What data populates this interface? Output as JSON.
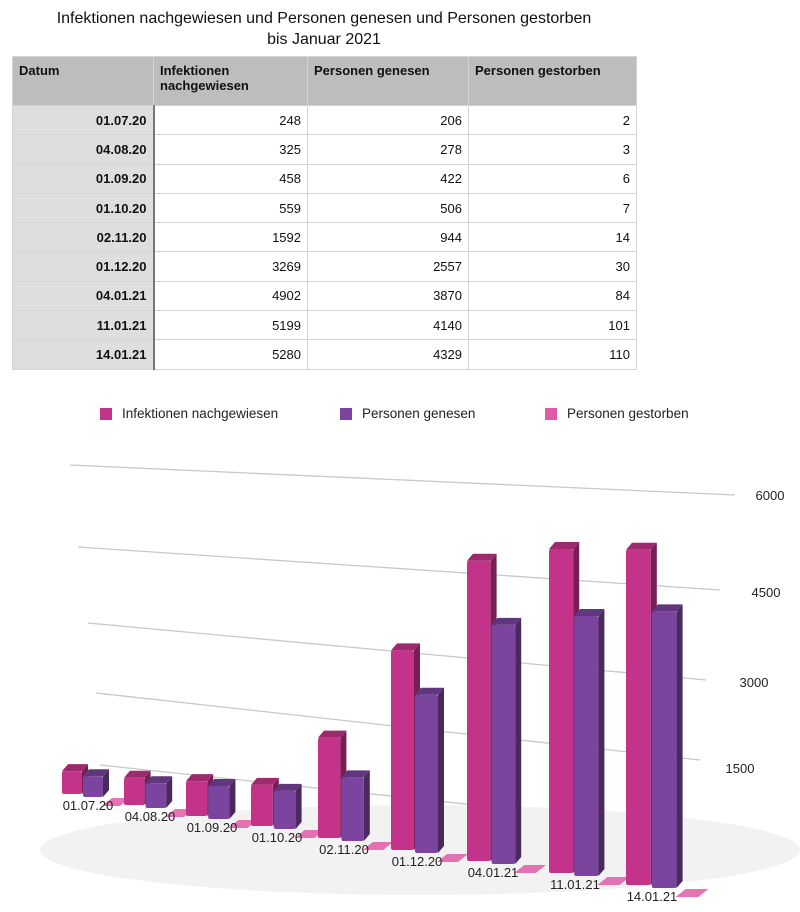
{
  "title_line1": "Infektionen nachgewiesen und Personen genesen und Personen gestorben",
  "title_line2": "bis Januar 2021",
  "table": {
    "headers": [
      "Datum",
      "Infektionen nachgewiesen",
      "Personen genesen",
      "Personen gestorben"
    ],
    "rows": [
      [
        "01.07.20",
        "248",
        "206",
        "2"
      ],
      [
        "04.08.20",
        "325",
        "278",
        "3"
      ],
      [
        "01.09.20",
        "458",
        "422",
        "6"
      ],
      [
        "01.10.20",
        "559",
        "506",
        "7"
      ],
      [
        "02.11.20",
        "1592",
        "944",
        "14"
      ],
      [
        "01.12.20",
        "3269",
        "2557",
        "30"
      ],
      [
        "04.01.21",
        "4902",
        "3870",
        "84"
      ],
      [
        "11.01.21",
        "5199",
        "4140",
        "101"
      ],
      [
        "14.01.21",
        "5280",
        "4329",
        "110"
      ]
    ]
  },
  "chart_data": {
    "type": "bar",
    "style": "3d",
    "categories": [
      "01.07.20",
      "04.08.20",
      "01.09.20",
      "01.10.20",
      "02.11.20",
      "01.12.20",
      "04.01.21",
      "11.01.21",
      "14.01.21"
    ],
    "series": [
      {
        "name": "Infektionen nachgewiesen",
        "color": "#c4338a",
        "values": [
          248,
          325,
          458,
          559,
          1592,
          3269,
          4902,
          5199,
          5280
        ]
      },
      {
        "name": "Personen genesen",
        "color": "#7b449e",
        "values": [
          206,
          278,
          422,
          506,
          944,
          2557,
          3870,
          4140,
          4329
        ]
      },
      {
        "name": "Personen gestorben",
        "color": "#e05aa8",
        "values": [
          2,
          3,
          6,
          7,
          14,
          30,
          84,
          101,
          110
        ]
      }
    ],
    "yticks": [
      "0",
      "1500",
      "3000",
      "4500",
      "6000"
    ],
    "ylim": [
      0,
      6000
    ],
    "legend": "top",
    "grid": true
  }
}
